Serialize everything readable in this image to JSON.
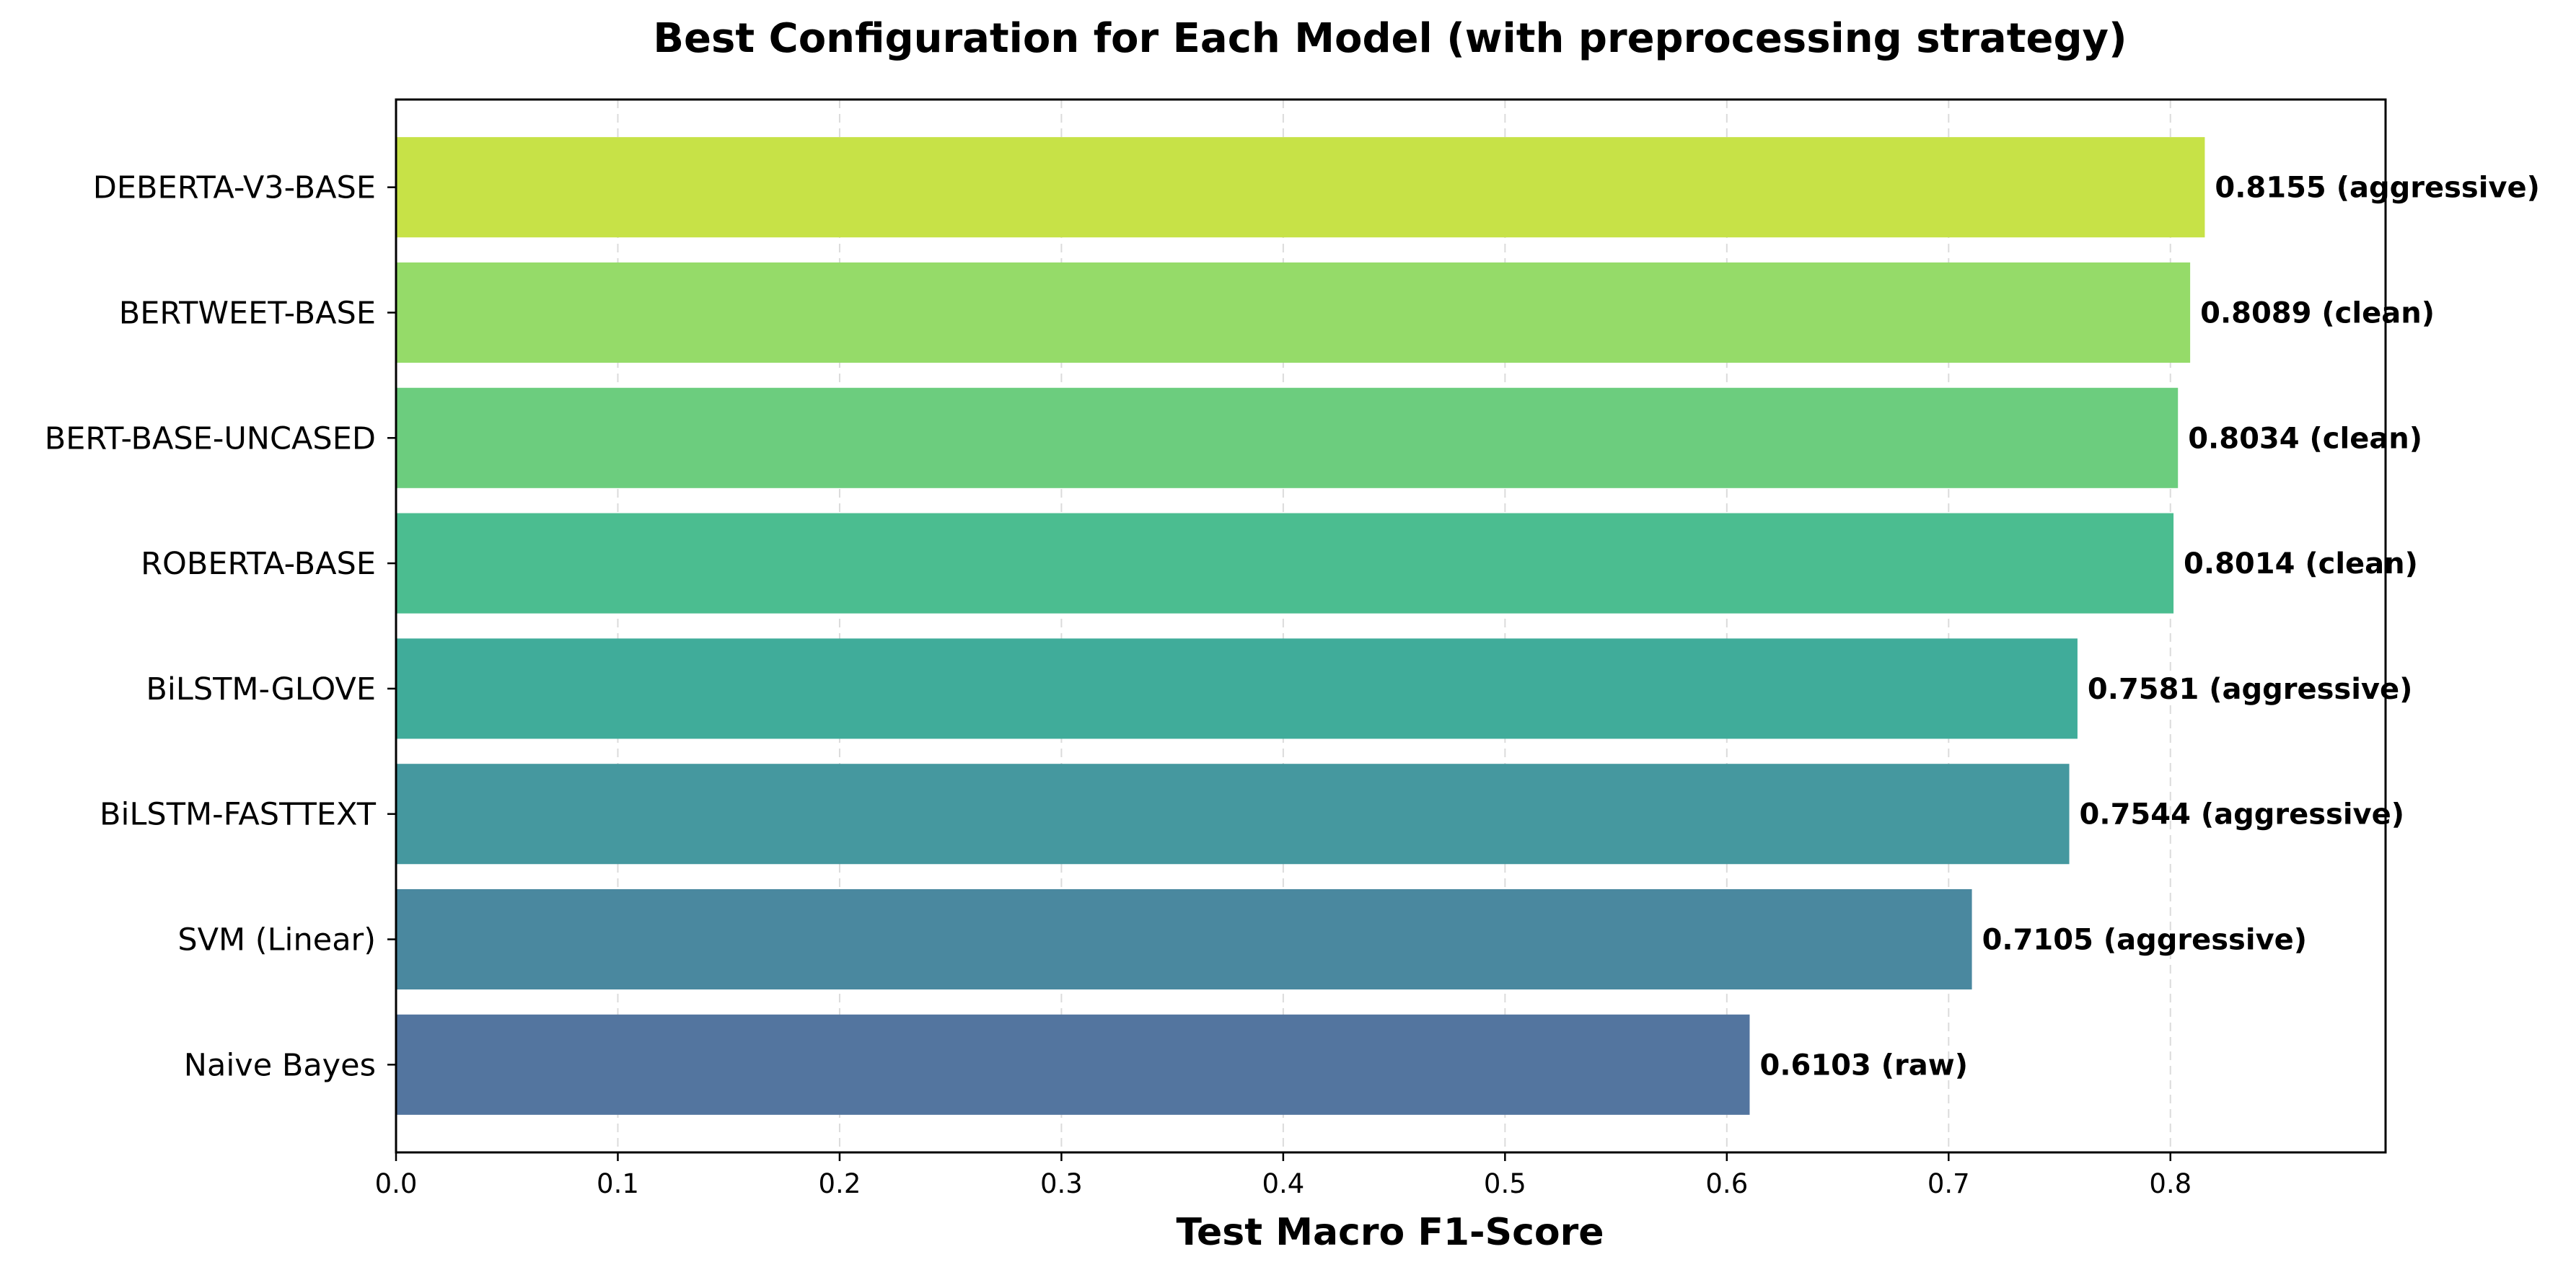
{
  "chart_data": {
    "type": "bar",
    "orientation": "horizontal",
    "title": "Best Configuration for Each Model (with preprocessing strategy)",
    "xlabel": "Test Macro F1-Score",
    "ylabel": "",
    "xlim": [
      0,
      0.897
    ],
    "grid": {
      "x": true,
      "y": false,
      "style": "dashed"
    },
    "x_ticks": [
      "0.0",
      "0.1",
      "0.2",
      "0.3",
      "0.4",
      "0.5",
      "0.6",
      "0.7",
      "0.8"
    ],
    "categories": [
      "DEBERTA-V3-BASE",
      "BERTWEET-BASE",
      "BERT-BASE-UNCASED",
      "ROBERTA-BASE",
      "BiLSTM-GLOVE",
      "BiLSTM-FASTTEXT",
      "SVM (Linear)",
      "Naive Bayes"
    ],
    "values": [
      0.8155,
      0.8089,
      0.8034,
      0.8014,
      0.7581,
      0.7544,
      0.7105,
      0.6103
    ],
    "data_labels": [
      "0.8155 (aggressive)",
      "0.8089 (clean)",
      "0.8034 (clean)",
      "0.8014 (clean)",
      "0.7581 (aggressive)",
      "0.7544 (aggressive)",
      "0.7105 (aggressive)",
      "0.6103 (raw)"
    ],
    "colors": [
      "#c7e247",
      "#95db69",
      "#6ccd7e",
      "#4bbd90",
      "#40ac9a",
      "#45989f",
      "#4a889f",
      "#53759f"
    ]
  }
}
